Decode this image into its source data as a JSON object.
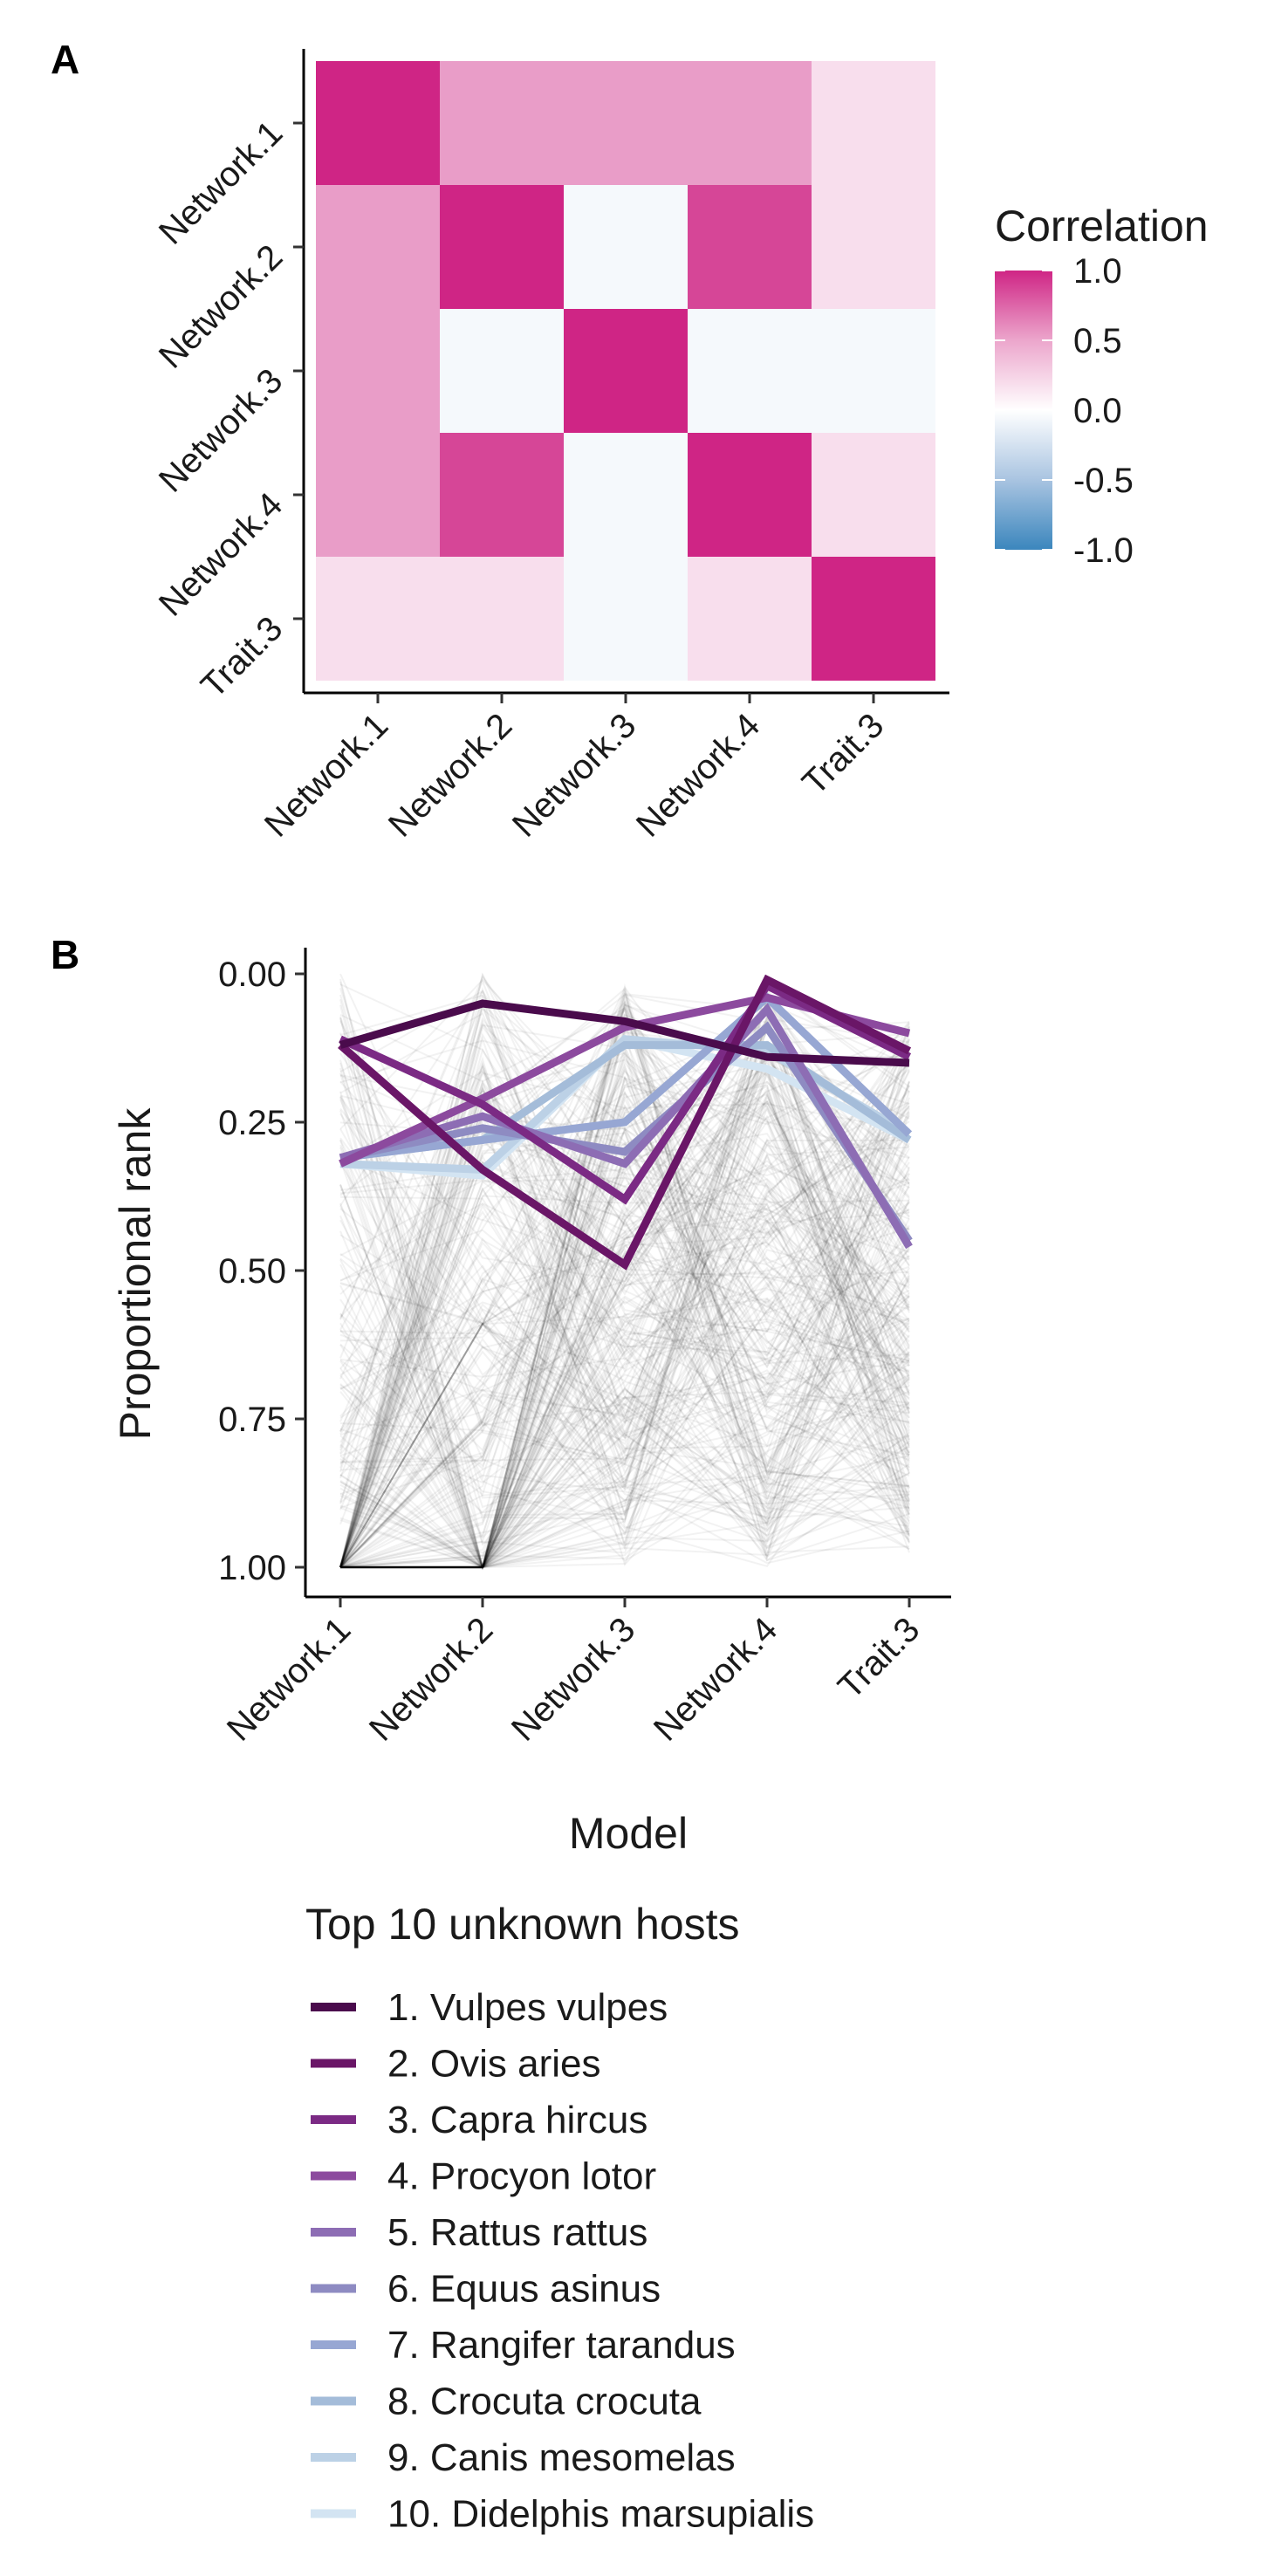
{
  "figure": {
    "panel_a_tag": "A",
    "panel_b_tag": "B",
    "legend_title": "Top 10 unknown hosts"
  },
  "chart_data": [
    {
      "type": "heatmap",
      "panel": "A",
      "rows": [
        "Network.1",
        "Network.2",
        "Network.3",
        "Network.4",
        "Trait.3"
      ],
      "columns": [
        "Network.1",
        "Network.2",
        "Network.3",
        "Network.4",
        "Trait.3"
      ],
      "values": [
        [
          1.0,
          0.45,
          0.45,
          0.45,
          0.15
        ],
        [
          0.45,
          1.0,
          -0.05,
          0.85,
          0.15
        ],
        [
          0.45,
          -0.05,
          1.0,
          -0.05,
          -0.05
        ],
        [
          0.45,
          0.85,
          -0.05,
          1.0,
          0.15
        ],
        [
          0.15,
          0.15,
          -0.05,
          0.15,
          1.0
        ]
      ],
      "colorbar": {
        "title": "Correlation",
        "ticks": [
          "1.0",
          "0.5",
          "0.0",
          "-0.5",
          "-1.0"
        ],
        "range": [
          -1.0,
          1.0
        ],
        "colors": {
          "low": "#3b86bd",
          "mid": "#ffffff",
          "high": "#cf2585"
        }
      }
    },
    {
      "type": "line",
      "panel": "B",
      "xlabel": "Model",
      "ylabel": "Proportional rank",
      "x": [
        "Network.1",
        "Network.2",
        "Network.3",
        "Network.4",
        "Trait.3"
      ],
      "y_ticks": [
        "0.00",
        "0.25",
        "0.50",
        "0.75",
        "1.00"
      ],
      "ylim": [
        0,
        1
      ],
      "y_reversed": true,
      "background_lines": "many faint grey host rank lines",
      "series": [
        {
          "name": "1. Vulpes vulpes",
          "color": "#4a0b4c",
          "values": [
            0.12,
            0.05,
            0.08,
            0.14,
            0.15
          ]
        },
        {
          "name": "2. Ovis aries",
          "color": "#6a1667",
          "values": [
            0.12,
            0.33,
            0.49,
            0.01,
            0.13
          ]
        },
        {
          "name": "3. Capra hircus",
          "color": "#7b2a84",
          "values": [
            0.11,
            0.22,
            0.38,
            0.02,
            0.14
          ]
        },
        {
          "name": "4. Procyon lotor",
          "color": "#8c4a9e",
          "values": [
            0.32,
            0.21,
            0.09,
            0.04,
            0.1
          ]
        },
        {
          "name": "5. Rattus rattus",
          "color": "#8d6db4",
          "values": [
            0.31,
            0.24,
            0.32,
            0.06,
            0.46
          ]
        },
        {
          "name": "6. Equus asinus",
          "color": "#8e8bc2",
          "values": [
            0.31,
            0.26,
            0.3,
            0.09,
            0.45
          ]
        },
        {
          "name": "7. Rangifer tarandus",
          "color": "#97a7d3",
          "values": [
            0.31,
            0.28,
            0.25,
            0.04,
            0.27
          ]
        },
        {
          "name": "8. Crocuta crocuta",
          "color": "#a4bcd9",
          "values": [
            0.31,
            0.28,
            0.12,
            0.12,
            0.28
          ]
        },
        {
          "name": "9. Canis mesomelas",
          "color": "#bcd1e6",
          "values": [
            0.32,
            0.33,
            0.11,
            0.13,
            0.27
          ]
        },
        {
          "name": "10. Didelphis marsupialis",
          "color": "#d3e4f2",
          "values": [
            0.32,
            0.34,
            0.11,
            0.16,
            0.28
          ]
        }
      ]
    }
  ]
}
